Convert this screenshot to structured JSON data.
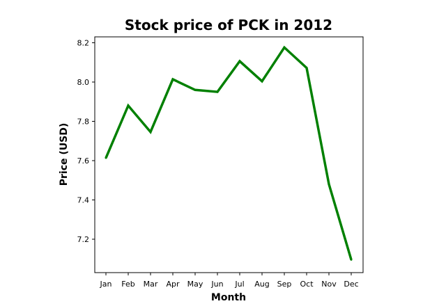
{
  "chart_data": {
    "type": "line",
    "title": "Stock price of PCK in 2012",
    "xlabel": "Month",
    "ylabel": "Price (USD)",
    "categories": [
      "Jan",
      "Feb",
      "Mar",
      "Apr",
      "May",
      "Jun",
      "Jul",
      "Aug",
      "Sep",
      "Oct",
      "Nov",
      "Dec"
    ],
    "series": [
      {
        "values": [
          7.614,
          7.88,
          7.746,
          8.014,
          7.96,
          7.95,
          8.106,
          8.004,
          8.176,
          8.072,
          7.48,
          7.096
        ],
        "color": "#008000"
      }
    ],
    "ylim": [
      7.03,
      8.23
    ],
    "yticks": [
      "7.2",
      "7.4",
      "7.6",
      "7.8",
      "8.0",
      "8.2"
    ],
    "grid": false,
    "legend": "none"
  }
}
